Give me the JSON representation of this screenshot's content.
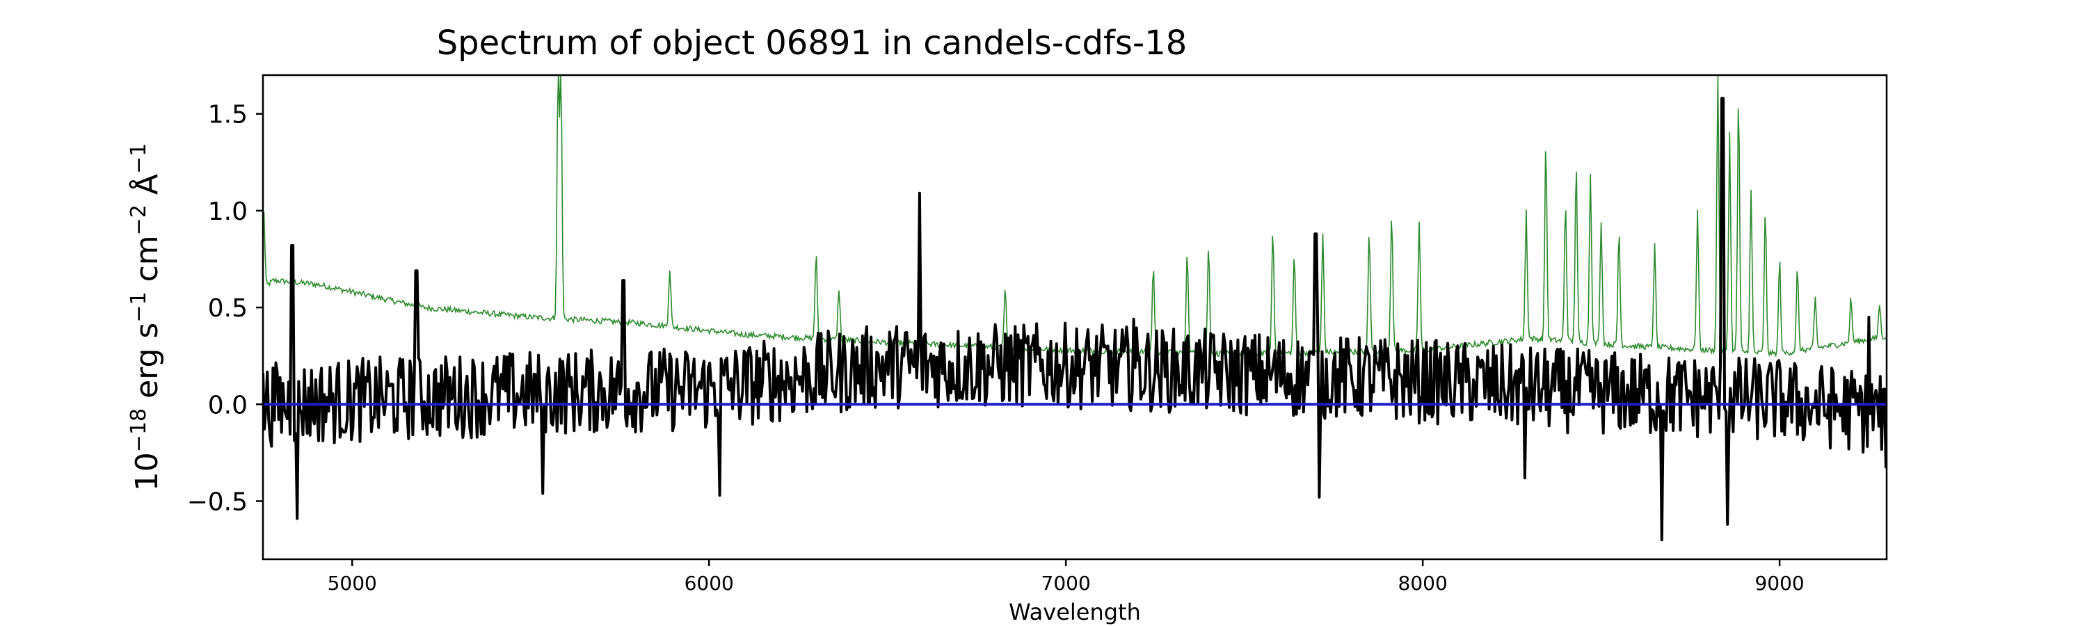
{
  "chart_data": {
    "type": "line",
    "title": "Spectrum of object 06891 in candels-cdfs-18",
    "xlabel": "Wavelength",
    "ylabel_parts": [
      "10",
      "−18",
      " erg s",
      "−1",
      " cm",
      "−2",
      " Å",
      "−1"
    ],
    "xlim": [
      4750,
      9300
    ],
    "ylim": [
      -0.8,
      1.7
    ],
    "xticks": [
      5000,
      6000,
      7000,
      8000,
      9000
    ],
    "xtick_labels": [
      "5000",
      "6000",
      "7000",
      "8000",
      "9000"
    ],
    "yticks": [
      -0.5,
      0.0,
      0.5,
      1.0,
      1.5
    ],
    "ytick_labels": [
      "−0.5",
      "0.0",
      "0.5",
      "1.0",
      "1.5"
    ],
    "grid": false,
    "series": [
      {
        "color": "#2c8a2c",
        "style": "thin",
        "continuum": [
          [
            4750,
            0.6
          ],
          [
            4780,
            0.64
          ],
          [
            4900,
            0.62
          ],
          [
            5200,
            0.5
          ],
          [
            5500,
            0.45
          ],
          [
            5800,
            0.42
          ],
          [
            6100,
            0.36
          ],
          [
            6500,
            0.32
          ],
          [
            7000,
            0.28
          ],
          [
            7500,
            0.26
          ],
          [
            8000,
            0.28
          ],
          [
            8300,
            0.34
          ],
          [
            8600,
            0.3
          ],
          [
            9000,
            0.26
          ],
          [
            9300,
            0.35
          ]
        ],
        "peaks": [
          [
            4752,
            1.02
          ],
          [
            5180,
            0.58
          ],
          [
            5577,
            1.7
          ],
          [
            5585,
            1.7
          ],
          [
            5890,
            0.7
          ],
          [
            6300,
            0.78
          ],
          [
            6364,
            0.6
          ],
          [
            6830,
            0.6
          ],
          [
            7245,
            0.72
          ],
          [
            7340,
            0.8
          ],
          [
            7400,
            0.82
          ],
          [
            7580,
            0.9
          ],
          [
            7640,
            0.78
          ],
          [
            7720,
            0.88
          ],
          [
            7850,
            0.9
          ],
          [
            7913,
            1.0
          ],
          [
            7990,
            0.95
          ],
          [
            8290,
            1.0
          ],
          [
            8345,
            1.37
          ],
          [
            8400,
            1.05
          ],
          [
            8430,
            1.25
          ],
          [
            8470,
            1.2
          ],
          [
            8500,
            0.95
          ],
          [
            8550,
            0.9
          ],
          [
            8650,
            0.82
          ],
          [
            8770,
            1.0
          ],
          [
            8827,
            1.7
          ],
          [
            8860,
            1.4
          ],
          [
            8885,
            1.6
          ],
          [
            8920,
            1.1
          ],
          [
            8960,
            1.0
          ],
          [
            9000,
            0.75
          ],
          [
            9050,
            0.7
          ],
          [
            9100,
            0.55
          ],
          [
            9200,
            0.55
          ],
          [
            9280,
            0.52
          ]
        ]
      },
      {
        "color": "#000000",
        "style": "thick",
        "base": [
          [
            4750,
            0.0
          ],
          [
            5500,
            0.06
          ],
          [
            6000,
            0.08
          ],
          [
            6500,
            0.2
          ],
          [
            7000,
            0.2
          ],
          [
            7500,
            0.16
          ],
          [
            8000,
            0.12
          ],
          [
            8500,
            0.06
          ],
          [
            9000,
            0.02
          ],
          [
            9300,
            -0.05
          ]
        ],
        "noise_amp": 0.22,
        "step": 4,
        "features": [
          [
            4832,
            0.82
          ],
          [
            4845,
            -0.59
          ],
          [
            5180,
            0.69
          ],
          [
            5535,
            -0.46
          ],
          [
            5760,
            0.64
          ],
          [
            6030,
            -0.47
          ],
          [
            6590,
            1.09
          ],
          [
            7190,
            0.44
          ],
          [
            7700,
            0.88
          ],
          [
            7710,
            -0.48
          ],
          [
            8285,
            -0.38
          ],
          [
            8670,
            -0.7
          ],
          [
            8840,
            1.58
          ],
          [
            8855,
            -0.62
          ],
          [
            9250,
            0.45
          ],
          [
            9300,
            -0.33
          ]
        ]
      },
      {
        "color": "#1c1cc8",
        "style": "flat",
        "y": 0.0
      }
    ]
  }
}
